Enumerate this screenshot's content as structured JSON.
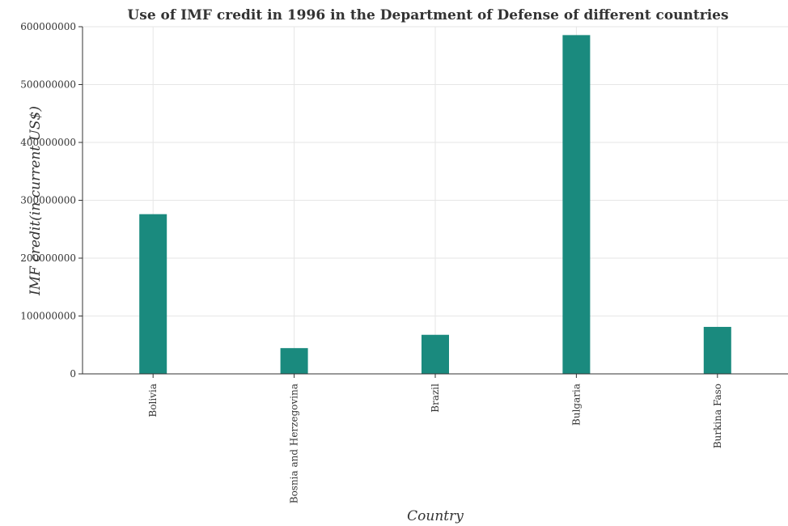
{
  "chart_data": {
    "type": "bar",
    "title": "Use of IMF credit in 1996 in the Department of Defense of different countries",
    "xlabel": "Country",
    "ylabel": "IMF credit(in current US$)",
    "categories": [
      "Bolivia",
      "Bosnia and Herzegovina",
      "Brazil",
      "Bulgaria",
      "Burkina Faso"
    ],
    "values": [
      276000000,
      44500000,
      67500000,
      585500000,
      81200000
    ],
    "ylim": [
      0,
      600000000
    ],
    "yticks": [
      0,
      100000000,
      200000000,
      300000000,
      400000000,
      500000000,
      600000000
    ],
    "ytick_labels": [
      "0",
      "100000000",
      "200000000",
      "300000000",
      "400000000",
      "500000000",
      "600000000"
    ],
    "grid": true,
    "bar_color": "#1a8a7e"
  }
}
